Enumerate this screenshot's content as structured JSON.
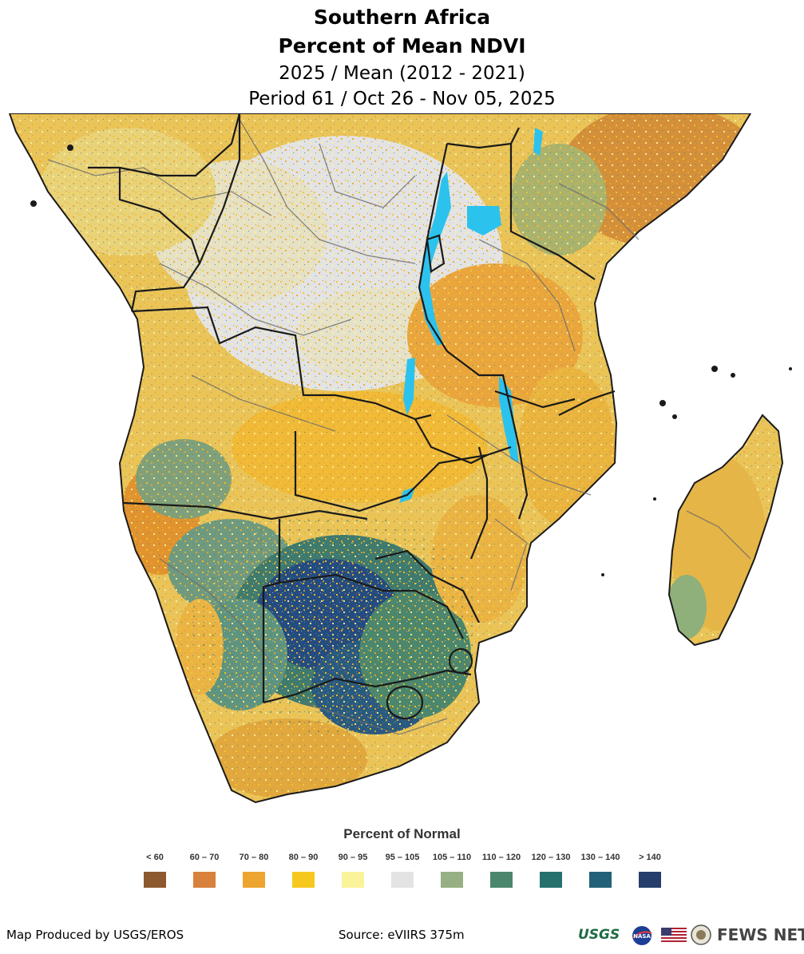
{
  "title": {
    "line1": "Southern Africa",
    "line2": "Percent of Mean NDVI",
    "line3": "2025 / Mean (2012 - 2021)",
    "line4": "Period 61 / Oct 26 - Nov 05, 2025"
  },
  "legend": {
    "title": "Percent of Normal",
    "items": [
      {
        "label": "< 60",
        "color": "#8c5a2e"
      },
      {
        "label": "60 – 70",
        "color": "#d8813c"
      },
      {
        "label": "70 – 80",
        "color": "#eda530"
      },
      {
        "label": "80 – 90",
        "color": "#f6c81e"
      },
      {
        "label": "90 – 95",
        "color": "#fbf39a"
      },
      {
        "label": "95 – 105",
        "color": "#e3e3e3"
      },
      {
        "label": "105 – 110",
        "color": "#97b083"
      },
      {
        "label": "110 – 120",
        "color": "#4c876d"
      },
      {
        "label": "120 – 130",
        "color": "#26716d"
      },
      {
        "label": "130 – 140",
        "color": "#236178"
      },
      {
        "label": "> 140",
        "color": "#253e6b"
      }
    ]
  },
  "footer": {
    "left": "Map Produced by USGS/EROS",
    "source": "Source: eVIIRS 375m",
    "logo_usgs": "USGS",
    "logo_nasa": "NASA",
    "logo_fewsnet": "FEWS NET"
  },
  "colors": {
    "land_default": "#e8c55a",
    "water": "#2cc2ee",
    "border": "#1a1a1a"
  }
}
